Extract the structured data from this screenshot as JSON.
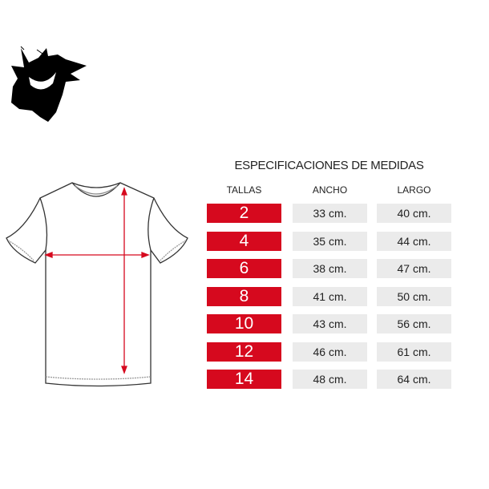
{
  "title": "ESPECIFICACIONES DE MEDIDAS",
  "headers": {
    "tallas": "TALLAS",
    "ancho": "ANCHO",
    "largo": "LARGO"
  },
  "rows": [
    {
      "talla": "2",
      "ancho": "33 cm.",
      "largo": "40 cm."
    },
    {
      "talla": "4",
      "ancho": "35 cm.",
      "largo": "44 cm."
    },
    {
      "talla": "6",
      "ancho": "38 cm.",
      "largo": "47 cm."
    },
    {
      "talla": "8",
      "ancho": "41 cm.",
      "largo": "50 cm."
    },
    {
      "talla": "10",
      "ancho": "43 cm.",
      "largo": "56 cm."
    },
    {
      "talla": "12",
      "ancho": "46 cm.",
      "largo": "61 cm."
    },
    {
      "talla": "14",
      "ancho": "48 cm.",
      "largo": "64 cm."
    }
  ],
  "colors": {
    "accent": "#d6091e",
    "cell": "#ebebeb"
  }
}
